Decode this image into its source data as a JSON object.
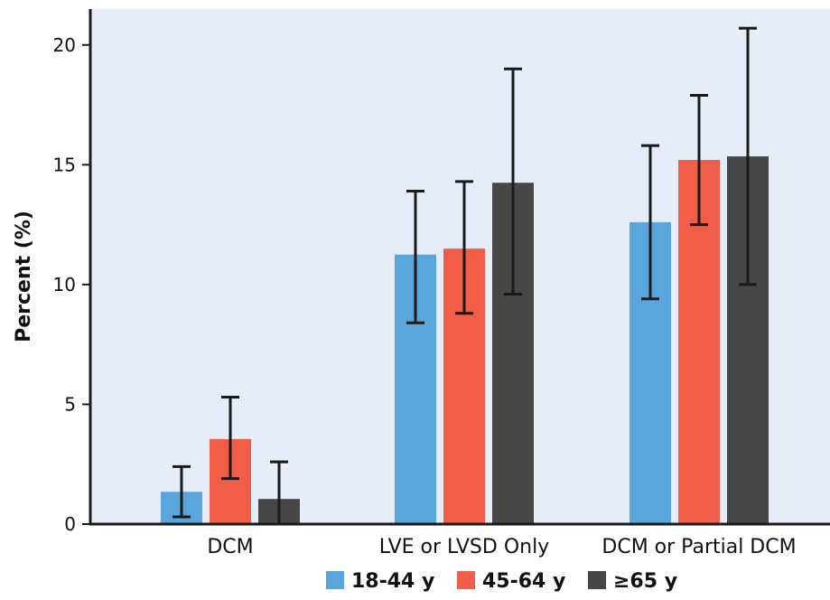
{
  "colors": {
    "plot_background": "#e7edf8",
    "axis": "#1a1a1a",
    "error_bar": "#1a1a1a"
  },
  "chart_data": {
    "type": "bar",
    "title": "",
    "xlabel": "",
    "ylabel": "Percent (%)",
    "ylim": [
      0,
      21.5
    ],
    "yticks": [
      0,
      5,
      10,
      15,
      20
    ],
    "grid": false,
    "legend_position": "bottom",
    "categories": [
      "DCM",
      "LVE or LVSD Only",
      "DCM or Partial DCM"
    ],
    "series": [
      {
        "name": "18-44 y",
        "color": "#5aa5dc",
        "values": [
          1.35,
          11.25,
          12.6
        ],
        "error_low": [
          0.3,
          8.4,
          9.4
        ],
        "error_high": [
          2.4,
          13.9,
          15.8
        ]
      },
      {
        "name": "45-64 y",
        "color": "#f15d47",
        "values": [
          3.55,
          11.5,
          15.2
        ],
        "error_low": [
          1.9,
          8.8,
          12.5
        ],
        "error_high": [
          5.3,
          14.3,
          17.9
        ]
      },
      {
        "name": "≥65 y",
        "color": "#474747",
        "values": [
          1.05,
          14.25,
          15.35
        ],
        "error_low": [
          0.0,
          9.6,
          10.0
        ],
        "error_high": [
          2.6,
          19.0,
          20.7
        ]
      }
    ]
  }
}
